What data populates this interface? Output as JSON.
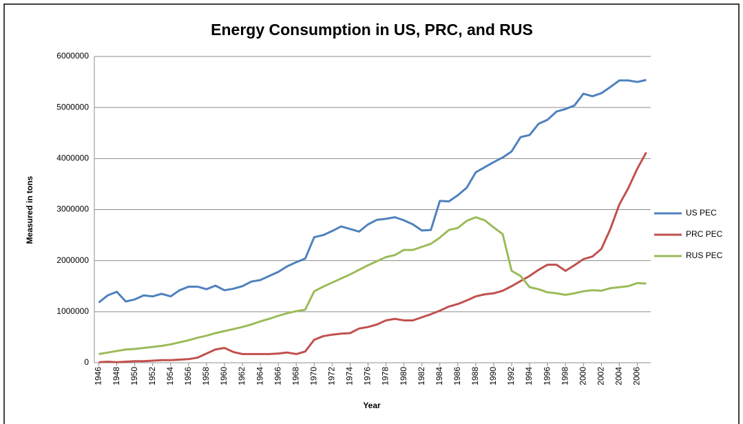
{
  "chart_data": {
    "type": "line",
    "title": "Energy Consumption in US, PRC, and RUS",
    "xlabel": "Year",
    "ylabel": "Measured in tons",
    "x": [
      1946,
      1947,
      1948,
      1949,
      1950,
      1951,
      1952,
      1953,
      1954,
      1955,
      1956,
      1957,
      1958,
      1959,
      1960,
      1961,
      1962,
      1963,
      1964,
      1965,
      1966,
      1967,
      1968,
      1969,
      1970,
      1971,
      1972,
      1973,
      1974,
      1975,
      1976,
      1977,
      1978,
      1979,
      1980,
      1981,
      1982,
      1983,
      1984,
      1985,
      1986,
      1987,
      1988,
      1989,
      1990,
      1991,
      1992,
      1993,
      1994,
      1995,
      1996,
      1997,
      1998,
      1999,
      2000,
      2001,
      2002,
      2003,
      2004,
      2005,
      2006,
      2007
    ],
    "xlim": [
      1945.5,
      2007.5
    ],
    "xticks": [
      1946,
      1948,
      1950,
      1952,
      1954,
      1956,
      1958,
      1960,
      1962,
      1964,
      1966,
      1968,
      1970,
      1972,
      1974,
      1976,
      1978,
      1980,
      1982,
      1984,
      1986,
      1988,
      1990,
      1992,
      1994,
      1996,
      1998,
      2000,
      2002,
      2004,
      2006
    ],
    "ylim": [
      0,
      6000000
    ],
    "yticks": [
      0,
      1000000,
      2000000,
      3000000,
      4000000,
      5000000,
      6000000
    ],
    "grid": true,
    "legend": "right",
    "series": [
      {
        "name": "US PEC",
        "color": "#4f81bd",
        "values": [
          1180000,
          1320000,
          1390000,
          1200000,
          1240000,
          1320000,
          1300000,
          1350000,
          1300000,
          1420000,
          1490000,
          1490000,
          1440000,
          1510000,
          1420000,
          1450000,
          1500000,
          1590000,
          1620000,
          1700000,
          1780000,
          1890000,
          1970000,
          2040000,
          2460000,
          2500000,
          2580000,
          2670000,
          2620000,
          2570000,
          2710000,
          2800000,
          2820000,
          2850000,
          2790000,
          2710000,
          2590000,
          2600000,
          3170000,
          3160000,
          3280000,
          3430000,
          3730000,
          3830000,
          3930000,
          4020000,
          4140000,
          4420000,
          4460000,
          4680000,
          4760000,
          4920000,
          4970000,
          5040000,
          5270000,
          5220000,
          5280000,
          5400000,
          5530000,
          5530000,
          5500000,
          5540000
        ]
      },
      {
        "name": "PRC PEC",
        "color": "#c0504d",
        "values": [
          10000,
          20000,
          10000,
          20000,
          30000,
          30000,
          40000,
          50000,
          50000,
          60000,
          70000,
          100000,
          180000,
          260000,
          290000,
          210000,
          170000,
          170000,
          170000,
          170000,
          180000,
          200000,
          170000,
          220000,
          450000,
          520000,
          550000,
          570000,
          580000,
          670000,
          700000,
          750000,
          830000,
          860000,
          830000,
          830000,
          890000,
          950000,
          1020000,
          1100000,
          1150000,
          1220000,
          1300000,
          1340000,
          1360000,
          1410000,
          1500000,
          1600000,
          1700000,
          1820000,
          1920000,
          1920000,
          1800000,
          1910000,
          2030000,
          2080000,
          2230000,
          2620000,
          3100000,
          3420000,
          3800000,
          4120000
        ]
      },
      {
        "name": "RUS PEC",
        "color": "#9bbb59",
        "values": [
          170000,
          200000,
          230000,
          260000,
          270000,
          290000,
          310000,
          330000,
          360000,
          400000,
          440000,
          490000,
          530000,
          580000,
          620000,
          660000,
          700000,
          750000,
          810000,
          860000,
          920000,
          970000,
          1010000,
          1040000,
          1400000,
          1490000,
          1570000,
          1650000,
          1730000,
          1820000,
          1910000,
          1990000,
          2070000,
          2110000,
          2210000,
          2210000,
          2270000,
          2330000,
          2450000,
          2600000,
          2640000,
          2780000,
          2850000,
          2790000,
          2650000,
          2520000,
          1800000,
          1700000,
          1480000,
          1440000,
          1380000,
          1360000,
          1330000,
          1360000,
          1400000,
          1420000,
          1410000,
          1460000,
          1480000,
          1500000,
          1560000,
          1550000
        ]
      }
    ]
  }
}
